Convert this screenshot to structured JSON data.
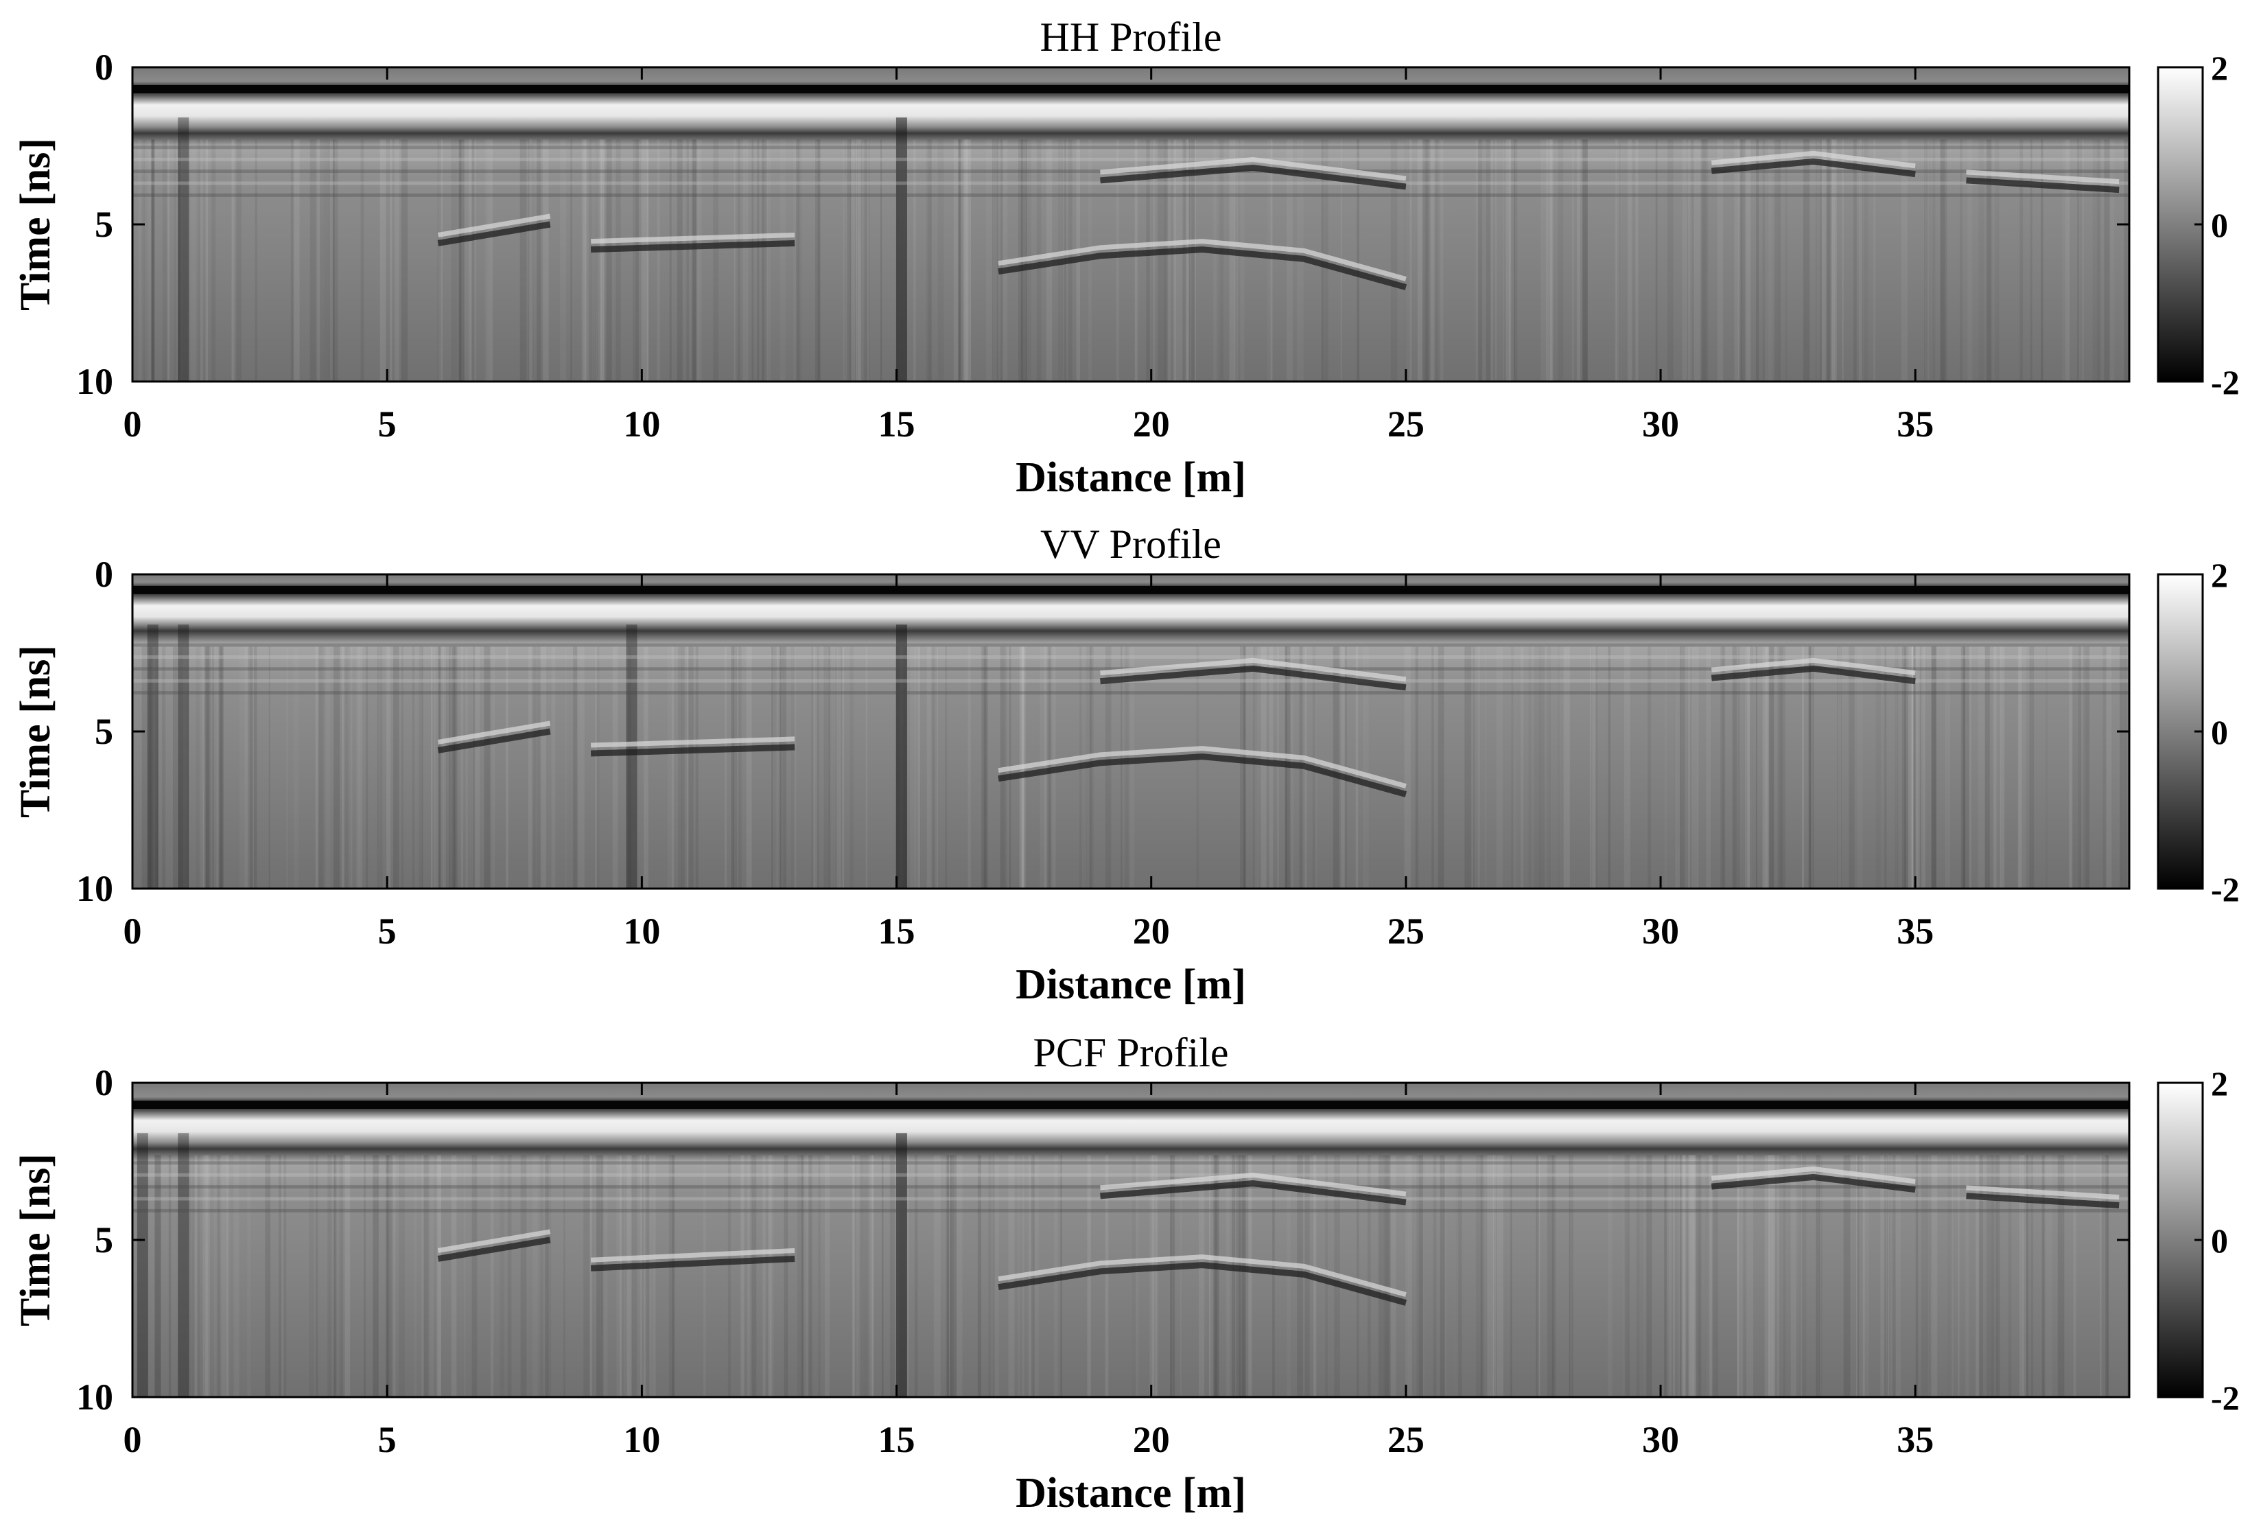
{
  "chart_data": [
    {
      "type": "heatmap",
      "title": "HH Profile",
      "xlabel": "Distance [m]",
      "ylabel": "Time [ns]",
      "xlim": [
        0,
        39.2
      ],
      "ylim": [
        10,
        0
      ],
      "y_reversed": true,
      "x_ticks": [
        "0",
        "5",
        "10",
        "15",
        "20",
        "25",
        "30",
        "35"
      ],
      "y_ticks": [
        "0",
        "5",
        "10"
      ],
      "colorbar": {
        "range": [
          -2,
          2
        ],
        "ticks": [
          "2",
          "0",
          "-2"
        ],
        "colormap": "gray"
      },
      "grid": false,
      "features": {
        "direct_wave_dark_ns": 0.7,
        "direct_wave_bright_ns": 1.2,
        "ground_reflection_dark_ns": 2.1,
        "reflectors": [
          {
            "x": [
              6,
              8.2
            ],
            "time_ns": [
              5.6,
              5.0
            ]
          },
          {
            "x": [
              9,
              13
            ],
            "time_ns": [
              5.8,
              5.6
            ]
          },
          {
            "x": [
              17,
              19,
              21,
              23,
              25
            ],
            "time_ns": [
              6.5,
              6.0,
              5.8,
              6.1,
              7.0
            ]
          },
          {
            "x": [
              19,
              22,
              25
            ],
            "time_ns": [
              3.6,
              3.2,
              3.8
            ]
          },
          {
            "x": [
              31,
              33,
              35
            ],
            "time_ns": [
              3.3,
              3.0,
              3.4
            ]
          },
          {
            "x": [
              36,
              39
            ],
            "time_ns": [
              3.6,
              3.9
            ]
          }
        ],
        "dark_vertical_bands_m": [
          15.1,
          1.0
        ]
      }
    },
    {
      "type": "heatmap",
      "title": "VV Profile",
      "xlabel": "Distance [m]",
      "ylabel": "Time [ns]",
      "xlim": [
        0,
        39.2
      ],
      "ylim": [
        10,
        0
      ],
      "y_reversed": true,
      "x_ticks": [
        "0",
        "5",
        "10",
        "15",
        "20",
        "25",
        "30",
        "35"
      ],
      "y_ticks": [
        "0",
        "5",
        "10"
      ],
      "colorbar": {
        "range": [
          -2,
          2
        ],
        "ticks": [
          "2",
          "0",
          "-2"
        ],
        "colormap": "gray"
      },
      "grid": false,
      "features": {
        "direct_wave_dark_ns": 0.5,
        "direct_wave_bright_ns": 1.0,
        "ground_reflection_dark_ns": 1.8,
        "reflectors": [
          {
            "x": [
              6,
              8.2
            ],
            "time_ns": [
              5.6,
              5.0
            ]
          },
          {
            "x": [
              9,
              13
            ],
            "time_ns": [
              5.7,
              5.5
            ]
          },
          {
            "x": [
              17,
              19,
              21,
              23,
              25
            ],
            "time_ns": [
              6.5,
              6.0,
              5.8,
              6.1,
              7.0
            ]
          },
          {
            "x": [
              19,
              22,
              25
            ],
            "time_ns": [
              3.4,
              3.0,
              3.6
            ]
          },
          {
            "x": [
              31,
              33,
              35
            ],
            "time_ns": [
              3.3,
              3.0,
              3.4
            ]
          }
        ],
        "dark_vertical_bands_m": [
          15.1,
          0.4,
          1.0,
          9.8
        ]
      }
    },
    {
      "type": "heatmap",
      "title": "PCF Profile",
      "xlabel": "Distance [m]",
      "ylabel": "Time [ns]",
      "xlim": [
        0,
        39.2
      ],
      "ylim": [
        10,
        0
      ],
      "y_reversed": true,
      "x_ticks": [
        "0",
        "5",
        "10",
        "15",
        "20",
        "25",
        "30",
        "35"
      ],
      "y_ticks": [
        "0",
        "5",
        "10"
      ],
      "colorbar": {
        "range": [
          -2,
          2
        ],
        "ticks": [
          "2",
          "0",
          "-2"
        ],
        "colormap": "gray"
      },
      "grid": false,
      "features": {
        "direct_wave_dark_ns": 0.7,
        "direct_wave_bright_ns": 1.2,
        "ground_reflection_dark_ns": 2.1,
        "reflectors": [
          {
            "x": [
              6,
              8.2
            ],
            "time_ns": [
              5.6,
              5.0
            ]
          },
          {
            "x": [
              9,
              13
            ],
            "time_ns": [
              5.9,
              5.6
            ]
          },
          {
            "x": [
              17,
              19,
              21,
              23,
              25
            ],
            "time_ns": [
              6.5,
              6.0,
              5.8,
              6.1,
              7.0
            ]
          },
          {
            "x": [
              19,
              22,
              25
            ],
            "time_ns": [
              3.6,
              3.2,
              3.8
            ]
          },
          {
            "x": [
              31,
              33,
              35
            ],
            "time_ns": [
              3.3,
              3.0,
              3.4
            ]
          },
          {
            "x": [
              36,
              39
            ],
            "time_ns": [
              3.6,
              3.9
            ]
          }
        ],
        "dark_vertical_bands_m": [
          15.1,
          0.2,
          1.0
        ]
      }
    }
  ]
}
